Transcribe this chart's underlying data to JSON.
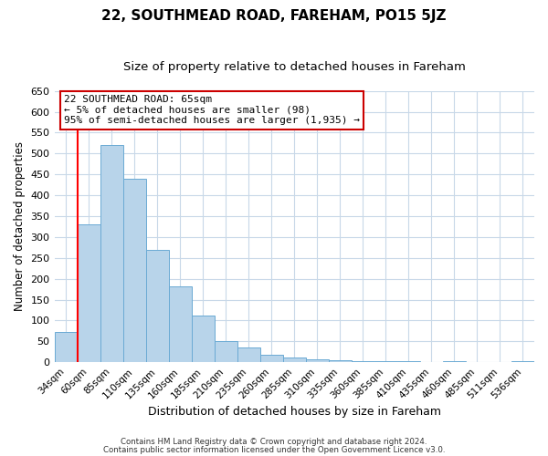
{
  "title": "22, SOUTHMEAD ROAD, FAREHAM, PO15 5JZ",
  "subtitle": "Size of property relative to detached houses in Fareham",
  "xlabel": "Distribution of detached houses by size in Fareham",
  "ylabel": "Number of detached properties",
  "bar_labels": [
    "34sqm",
    "60sqm",
    "85sqm",
    "110sqm",
    "135sqm",
    "160sqm",
    "185sqm",
    "210sqm",
    "235sqm",
    "260sqm",
    "285sqm",
    "310sqm",
    "335sqm",
    "360sqm",
    "385sqm",
    "410sqm",
    "435sqm",
    "460sqm",
    "485sqm",
    "511sqm",
    "536sqm"
  ],
  "bar_values": [
    72,
    330,
    520,
    440,
    270,
    182,
    113,
    50,
    35,
    18,
    12,
    8,
    5,
    3,
    2,
    2,
    0,
    3,
    1,
    1,
    2
  ],
  "bar_color": "#b8d4ea",
  "bar_edge_color": "#6aaad4",
  "annotation_box_text": "22 SOUTHMEAD ROAD: 65sqm\n← 5% of detached houses are smaller (98)\n95% of semi-detached houses are larger (1,935) →",
  "annotation_box_color": "#ffffff",
  "annotation_box_edge_color": "#cc0000",
  "ylim": [
    0,
    650
  ],
  "yticks": [
    0,
    50,
    100,
    150,
    200,
    250,
    300,
    350,
    400,
    450,
    500,
    550,
    600,
    650
  ],
  "background_color": "#ffffff",
  "grid_color": "#c8d8e8",
  "footer_line1": "Contains HM Land Registry data © Crown copyright and database right 2024.",
  "footer_line2": "Contains public sector information licensed under the Open Government Licence v3.0.",
  "title_fontsize": 11,
  "subtitle_fontsize": 9.5
}
